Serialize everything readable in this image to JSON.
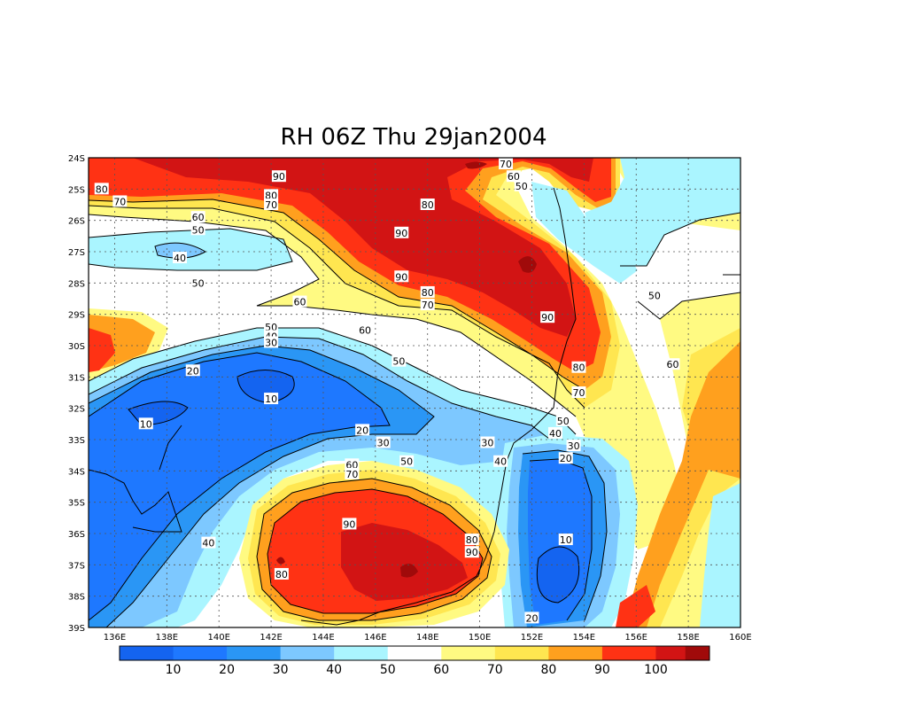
{
  "title": "RH 06Z Thu 29jan2004",
  "colors": {
    "c0": "#1464f0",
    "c1": "#1e78ff",
    "c2": "#2a96f5",
    "c3": "#7dc8ff",
    "c4": "#aaf5ff",
    "c5": "#ffffff",
    "c6": "#fffa82",
    "c7": "#ffe650",
    "c8": "#ffa01e",
    "c9": "#ff3214",
    "c10": "#d21414",
    "c11": "#a00a0a"
  },
  "chart_data": {
    "type": "heatmap",
    "title": "RH 06Z Thu 29jan2004",
    "x_ticks": [
      "136E",
      "138E",
      "140E",
      "142E",
      "144E",
      "146E",
      "148E",
      "150E",
      "152E",
      "154E",
      "156E",
      "158E",
      "160E"
    ],
    "y_ticks": [
      "24S",
      "25S",
      "26S",
      "27S",
      "28S",
      "29S",
      "30S",
      "31S",
      "32S",
      "33S",
      "34S",
      "35S",
      "36S",
      "37S",
      "38S",
      "39S"
    ],
    "xlim": [
      135,
      160
    ],
    "ylim": [
      -39,
      -24
    ],
    "colorbar_labels": [
      "10",
      "20",
      "30",
      "40",
      "50",
      "60",
      "70",
      "80",
      "90",
      "100"
    ],
    "grid": true,
    "contour_labels": [
      {
        "text": "80",
        "lon": 135.5,
        "lat": -25.0
      },
      {
        "text": "70",
        "lon": 136.2,
        "lat": -25.4
      },
      {
        "text": "90",
        "lon": 142.3,
        "lat": -24.6
      },
      {
        "text": "80",
        "lon": 142.0,
        "lat": -25.2
      },
      {
        "text": "70",
        "lon": 142.0,
        "lat": -25.5
      },
      {
        "text": "60",
        "lon": 139.2,
        "lat": -25.9
      },
      {
        "text": "50",
        "lon": 139.2,
        "lat": -26.3
      },
      {
        "text": "40",
        "lon": 138.5,
        "lat": -27.2
      },
      {
        "text": "50",
        "lon": 139.2,
        "lat": -28.0
      },
      {
        "text": "60",
        "lon": 143.1,
        "lat": -28.6
      },
      {
        "text": "90",
        "lon": 147.0,
        "lat": -26.4
      },
      {
        "text": "80",
        "lon": 148.0,
        "lat": -25.5
      },
      {
        "text": "90",
        "lon": 147.0,
        "lat": -27.8
      },
      {
        "text": "80",
        "lon": 148.0,
        "lat": -28.3
      },
      {
        "text": "70",
        "lon": 148.0,
        "lat": -28.7
      },
      {
        "text": "90",
        "lon": 152.6,
        "lat": -29.1
      },
      {
        "text": "70",
        "lon": 151.0,
        "lat": -24.2
      },
      {
        "text": "60",
        "lon": 151.3,
        "lat": -24.6
      },
      {
        "text": "50",
        "lon": 151.6,
        "lat": -24.9
      },
      {
        "text": "50",
        "lon": 156.7,
        "lat": -28.4
      },
      {
        "text": "60",
        "lon": 157.4,
        "lat": -30.6
      },
      {
        "text": "60",
        "lon": 145.6,
        "lat": -29.5
      },
      {
        "text": "50",
        "lon": 142.0,
        "lat": -29.4
      },
      {
        "text": "40",
        "lon": 142.0,
        "lat": -29.7
      },
      {
        "text": "30",
        "lon": 142.0,
        "lat": -29.9
      },
      {
        "text": "50",
        "lon": 146.9,
        "lat": -30.5
      },
      {
        "text": "20",
        "lon": 139.0,
        "lat": -30.8
      },
      {
        "text": "10",
        "lon": 142.0,
        "lat": -31.7
      },
      {
        "text": "10",
        "lon": 137.2,
        "lat": -32.5
      },
      {
        "text": "20",
        "lon": 145.5,
        "lat": -32.7
      },
      {
        "text": "30",
        "lon": 146.3,
        "lat": -33.1
      },
      {
        "text": "30",
        "lon": 150.3,
        "lat": -33.1
      },
      {
        "text": "40",
        "lon": 150.8,
        "lat": -33.7
      },
      {
        "text": "50",
        "lon": 147.2,
        "lat": -33.7
      },
      {
        "text": "60",
        "lon": 145.1,
        "lat": -33.8
      },
      {
        "text": "70",
        "lon": 145.1,
        "lat": -34.1
      },
      {
        "text": "80",
        "lon": 153.8,
        "lat": -30.7
      },
      {
        "text": "70",
        "lon": 153.8,
        "lat": -31.5
      },
      {
        "text": "50",
        "lon": 153.2,
        "lat": -32.4
      },
      {
        "text": "40",
        "lon": 152.9,
        "lat": -32.8
      },
      {
        "text": "30",
        "lon": 153.6,
        "lat": -33.2
      },
      {
        "text": "20",
        "lon": 153.3,
        "lat": -33.6
      },
      {
        "text": "10",
        "lon": 153.3,
        "lat": -36.2
      },
      {
        "text": "20",
        "lon": 152.0,
        "lat": -38.7
      },
      {
        "text": "90",
        "lon": 145.0,
        "lat": -35.7
      },
      {
        "text": "80",
        "lon": 149.7,
        "lat": -36.2
      },
      {
        "text": "90",
        "lon": 149.7,
        "lat": -36.6
      },
      {
        "text": "80",
        "lon": 142.4,
        "lat": -37.3
      },
      {
        "text": "40",
        "lon": 139.6,
        "lat": -36.3
      }
    ]
  }
}
